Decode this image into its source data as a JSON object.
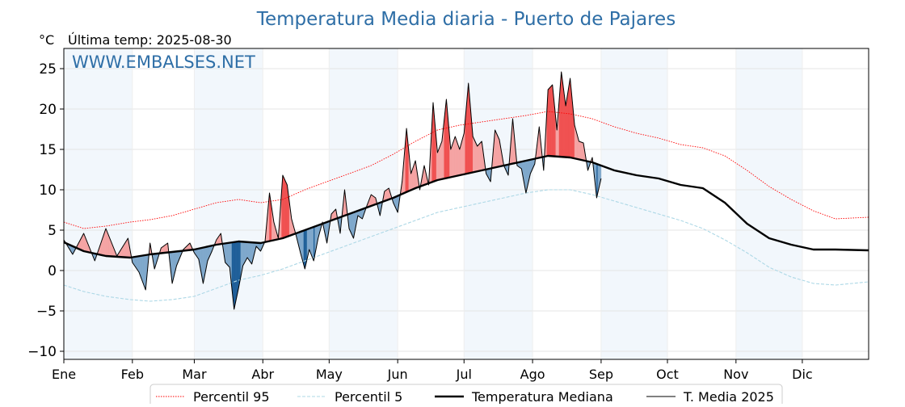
{
  "chart_data": {
    "type": "line",
    "title": "Temperatura Media diaria - Puerto de Pajares",
    "unit_label": "°C",
    "last_temp_label": "Última temp: 2025-08-30",
    "watermark": "WWW.EMBALSES.NET",
    "xlabel": "",
    "ylabel": "",
    "ylim": [
      -11,
      27.5
    ],
    "yticks": [
      -10,
      -5,
      0,
      5,
      10,
      15,
      20,
      25
    ],
    "ytick_labels": [
      "−10",
      "−5",
      "0",
      "5",
      "10",
      "15",
      "20",
      "25"
    ],
    "x_unit": "day of year",
    "xlim": [
      1,
      365
    ],
    "months": [
      {
        "label": "Ene",
        "start_day": 1
      },
      {
        "label": "Feb",
        "start_day": 32
      },
      {
        "label": "Mar",
        "start_day": 60
      },
      {
        "label": "Abr",
        "start_day": 91
      },
      {
        "label": "May",
        "start_day": 121
      },
      {
        "label": "Jun",
        "start_day": 152
      },
      {
        "label": "Jul",
        "start_day": 182
      },
      {
        "label": "Ago",
        "start_day": 213
      },
      {
        "label": "Sep",
        "start_day": 244
      },
      {
        "label": "Oct",
        "start_day": 274
      },
      {
        "label": "Nov",
        "start_day": 305
      },
      {
        "label": "Dic",
        "start_day": 335
      }
    ],
    "grid": true,
    "legend_position": "bottom",
    "colors": {
      "p95": "#ff0000",
      "p5": "#add8e6",
      "median": "#000000",
      "current": "#000000",
      "above_fill": "#f5a3a3",
      "above_strong_fill": "#f05050",
      "below_fill": "#7fa8cc",
      "below_strong_fill": "#1f5f99",
      "month_band": "#f2f7fc",
      "title": "#2e6ea6"
    },
    "series": [
      {
        "name": "Percentil 95",
        "style": "dotted-thin",
        "points": [
          [
            1,
            6
          ],
          [
            10,
            5.2
          ],
          [
            20,
            5.5
          ],
          [
            31,
            6
          ],
          [
            40,
            6.3
          ],
          [
            50,
            6.8
          ],
          [
            60,
            7.6
          ],
          [
            70,
            8.4
          ],
          [
            80,
            8.8
          ],
          [
            90,
            8.4
          ],
          [
            100,
            8.8
          ],
          [
            110,
            10
          ],
          [
            120,
            11
          ],
          [
            130,
            12
          ],
          [
            140,
            13
          ],
          [
            150,
            14.4
          ],
          [
            160,
            16
          ],
          [
            170,
            17.4
          ],
          [
            180,
            18
          ],
          [
            190,
            18.4
          ],
          [
            200,
            18.8
          ],
          [
            210,
            19.2
          ],
          [
            220,
            19.7
          ],
          [
            230,
            19.4
          ],
          [
            240,
            18.8
          ],
          [
            250,
            17.8
          ],
          [
            260,
            17
          ],
          [
            270,
            16.4
          ],
          [
            280,
            15.6
          ],
          [
            290,
            15.2
          ],
          [
            300,
            14.2
          ],
          [
            310,
            12.4
          ],
          [
            320,
            10.4
          ],
          [
            330,
            8.8
          ],
          [
            340,
            7.4
          ],
          [
            350,
            6.4
          ],
          [
            365,
            6.6
          ]
        ]
      },
      {
        "name": "Percentil 5",
        "style": "dashed-thin",
        "points": [
          [
            1,
            -1.8
          ],
          [
            10,
            -2.6
          ],
          [
            20,
            -3.2
          ],
          [
            31,
            -3.6
          ],
          [
            40,
            -3.8
          ],
          [
            50,
            -3.6
          ],
          [
            60,
            -3.2
          ],
          [
            70,
            -2.2
          ],
          [
            80,
            -1.2
          ],
          [
            90,
            -0.6
          ],
          [
            100,
            0.2
          ],
          [
            110,
            1.2
          ],
          [
            120,
            2.2
          ],
          [
            130,
            3.2
          ],
          [
            140,
            4.2
          ],
          [
            150,
            5.2
          ],
          [
            160,
            6.2
          ],
          [
            170,
            7.2
          ],
          [
            180,
            7.8
          ],
          [
            190,
            8.4
          ],
          [
            200,
            9
          ],
          [
            210,
            9.6
          ],
          [
            220,
            10
          ],
          [
            230,
            10
          ],
          [
            240,
            9.4
          ],
          [
            250,
            8.6
          ],
          [
            260,
            7.8
          ],
          [
            270,
            7
          ],
          [
            280,
            6.2
          ],
          [
            290,
            5.2
          ],
          [
            300,
            3.8
          ],
          [
            310,
            2.2
          ],
          [
            320,
            0.4
          ],
          [
            330,
            -0.8
          ],
          [
            340,
            -1.6
          ],
          [
            350,
            -1.8
          ],
          [
            365,
            -1.4
          ]
        ]
      },
      {
        "name": "Temperatura Mediana",
        "style": "thick",
        "points": [
          [
            1,
            3.5
          ],
          [
            10,
            2.4
          ],
          [
            20,
            1.8
          ],
          [
            31,
            1.6
          ],
          [
            40,
            2
          ],
          [
            50,
            2.3
          ],
          [
            60,
            2.6
          ],
          [
            70,
            3.2
          ],
          [
            80,
            3.6
          ],
          [
            90,
            3.4
          ],
          [
            100,
            4
          ],
          [
            110,
            5
          ],
          [
            120,
            6
          ],
          [
            130,
            7
          ],
          [
            140,
            8
          ],
          [
            150,
            9
          ],
          [
            160,
            10.2
          ],
          [
            170,
            11.2
          ],
          [
            180,
            11.8
          ],
          [
            190,
            12.4
          ],
          [
            200,
            13
          ],
          [
            210,
            13.6
          ],
          [
            220,
            14.2
          ],
          [
            230,
            14
          ],
          [
            240,
            13.4
          ],
          [
            250,
            12.4
          ],
          [
            260,
            11.8
          ],
          [
            270,
            11.4
          ],
          [
            280,
            10.6
          ],
          [
            290,
            10.2
          ],
          [
            300,
            8.4
          ],
          [
            310,
            5.8
          ],
          [
            320,
            4
          ],
          [
            330,
            3.2
          ],
          [
            340,
            2.6
          ],
          [
            350,
            2.6
          ],
          [
            365,
            2.5
          ]
        ]
      },
      {
        "name": "T. Media 2025",
        "style": "thin",
        "points": [
          [
            1,
            3.8
          ],
          [
            5,
            2
          ],
          [
            10,
            4.6
          ],
          [
            15,
            1.2
          ],
          [
            20,
            5.2
          ],
          [
            25,
            1.8
          ],
          [
            30,
            4
          ],
          [
            32,
            1
          ],
          [
            35,
            -0.2
          ],
          [
            38,
            -2.4
          ],
          [
            40,
            3.4
          ],
          [
            42,
            0.2
          ],
          [
            45,
            2.8
          ],
          [
            48,
            3.4
          ],
          [
            50,
            -1.6
          ],
          [
            52,
            0.6
          ],
          [
            55,
            2.6
          ],
          [
            58,
            3.4
          ],
          [
            60,
            2.2
          ],
          [
            62,
            1.4
          ],
          [
            64,
            -1.6
          ],
          [
            66,
            1.2
          ],
          [
            68,
            2.4
          ],
          [
            70,
            3.8
          ],
          [
            72,
            4.6
          ],
          [
            74,
            1
          ],
          [
            76,
            0.4
          ],
          [
            78,
            -4.8
          ],
          [
            80,
            -2.2
          ],
          [
            82,
            0.6
          ],
          [
            84,
            1.6
          ],
          [
            86,
            0.8
          ],
          [
            88,
            3
          ],
          [
            90,
            2.4
          ],
          [
            92,
            3.6
          ],
          [
            94,
            9.6
          ],
          [
            96,
            6
          ],
          [
            98,
            4
          ],
          [
            100,
            11.8
          ],
          [
            102,
            10.6
          ],
          [
            104,
            6.4
          ],
          [
            106,
            4.4
          ],
          [
            108,
            2.2
          ],
          [
            110,
            0.2
          ],
          [
            112,
            2.6
          ],
          [
            114,
            1.2
          ],
          [
            116,
            4
          ],
          [
            118,
            6
          ],
          [
            120,
            3.4
          ],
          [
            122,
            7
          ],
          [
            124,
            7.6
          ],
          [
            126,
            4.6
          ],
          [
            128,
            10
          ],
          [
            130,
            5.2
          ],
          [
            132,
            4
          ],
          [
            134,
            6.8
          ],
          [
            136,
            6.4
          ],
          [
            138,
            8
          ],
          [
            140,
            9.4
          ],
          [
            142,
            9
          ],
          [
            144,
            6.8
          ],
          [
            146,
            9.8
          ],
          [
            148,
            10.2
          ],
          [
            150,
            8.4
          ],
          [
            152,
            7.2
          ],
          [
            154,
            11
          ],
          [
            156,
            17.6
          ],
          [
            158,
            12
          ],
          [
            160,
            13.6
          ],
          [
            162,
            10
          ],
          [
            164,
            13
          ],
          [
            166,
            10.6
          ],
          [
            168,
            20.8
          ],
          [
            170,
            14.6
          ],
          [
            172,
            16
          ],
          [
            174,
            21.2
          ],
          [
            176,
            15
          ],
          [
            178,
            16.6
          ],
          [
            180,
            15
          ],
          [
            182,
            17
          ],
          [
            184,
            23.2
          ],
          [
            186,
            16.6
          ],
          [
            188,
            15.4
          ],
          [
            190,
            16
          ],
          [
            192,
            12
          ],
          [
            194,
            11
          ],
          [
            196,
            17.4
          ],
          [
            198,
            16.2
          ],
          [
            200,
            13
          ],
          [
            202,
            11.8
          ],
          [
            204,
            18.8
          ],
          [
            206,
            13
          ],
          [
            208,
            12.6
          ],
          [
            210,
            9.6
          ],
          [
            212,
            12
          ],
          [
            214,
            13.2
          ],
          [
            216,
            17.8
          ],
          [
            218,
            12.4
          ],
          [
            220,
            22.4
          ],
          [
            222,
            23
          ],
          [
            224,
            17.4
          ],
          [
            226,
            24.6
          ],
          [
            228,
            20.4
          ],
          [
            230,
            23.8
          ],
          [
            232,
            18
          ],
          [
            234,
            16
          ],
          [
            236,
            15.8
          ],
          [
            238,
            12.4
          ],
          [
            240,
            14
          ],
          [
            242,
            9
          ],
          [
            244,
            11.4
          ]
        ]
      }
    ],
    "legend": [
      {
        "name": "Percentil 95",
        "style": "dotted-thin"
      },
      {
        "name": "Percentil 5",
        "style": "dashed-thin"
      },
      {
        "name": "Temperatura Mediana",
        "style": "thick"
      },
      {
        "name": "T. Media 2025",
        "style": "thin"
      }
    ]
  }
}
